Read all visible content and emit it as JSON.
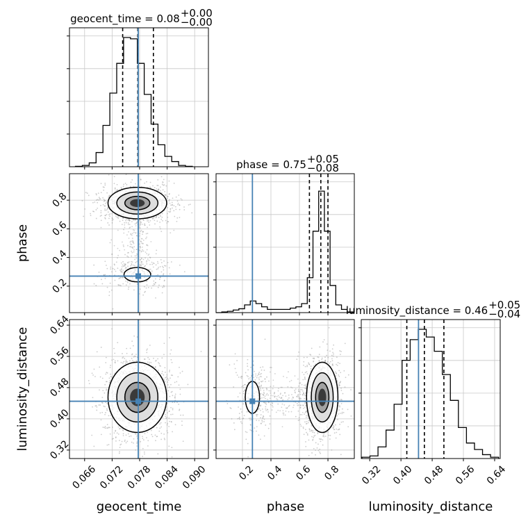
{
  "chart_data": {
    "type": "corner",
    "parameters": [
      "geocent_time",
      "phase",
      "luminosity_distance"
    ],
    "axis_labels": {
      "geocent_time": "geocent_time",
      "phase": "phase",
      "luminosity_distance": "luminosity_distance"
    },
    "titles": [
      {
        "param": "geocent_time",
        "label": "geocent_time",
        "median": "0.08",
        "plus": "+0.00",
        "minus": "−0.00"
      },
      {
        "param": "phase",
        "label": "phase",
        "median": "0.75",
        "plus": "+0.05",
        "minus": "−0.08"
      },
      {
        "param": "luminosity_distance",
        "label": "luminosity_distance",
        "median": "0.46",
        "plus": "+0.05",
        "minus": "−0.04"
      }
    ],
    "ranges": {
      "geocent_time": [
        0.0627,
        0.093
      ],
      "phase": [
        0.015,
        0.985
      ],
      "luminosity_distance": [
        0.2983,
        0.6543
      ]
    },
    "ticks": {
      "geocent_time": [
        "0.066",
        "0.072",
        "0.078",
        "0.084",
        "0.090"
      ],
      "phase": [
        "0.2",
        "0.4",
        "0.6",
        "0.8"
      ],
      "luminosity_distance": [
        "0.32",
        "0.40",
        "0.48",
        "0.56",
        "0.64"
      ]
    },
    "truths": {
      "geocent_time": 0.0777,
      "phase": 0.27,
      "luminosity_distance": 0.445
    },
    "quantiles": {
      "geocent_time": [
        0.0743,
        0.0776,
        0.081
      ],
      "phase": [
        0.67,
        0.75,
        0.8
      ],
      "luminosity_distance": [
        0.415,
        0.46,
        0.51
      ]
    },
    "histograms": {
      "geocent_time": {
        "edges": [
          0.064,
          0.0655,
          0.067,
          0.0685,
          0.07,
          0.0715,
          0.073,
          0.0745,
          0.076,
          0.0775,
          0.079,
          0.0805,
          0.082,
          0.0835,
          0.085,
          0.0865,
          0.088,
          0.0895
        ],
        "counts": [
          0.003,
          0.01,
          0.03,
          0.11,
          0.32,
          0.57,
          0.8,
          1.0,
          0.99,
          0.8,
          0.56,
          0.33,
          0.17,
          0.08,
          0.04,
          0.01,
          0.003
        ]
      },
      "phase": {
        "edges": [
          0.015,
          0.055,
          0.095,
          0.135,
          0.175,
          0.215,
          0.255,
          0.295,
          0.335,
          0.375,
          0.415,
          0.455,
          0.495,
          0.535,
          0.575,
          0.615,
          0.655,
          0.695,
          0.735,
          0.775,
          0.815,
          0.855,
          0.895,
          0.935,
          0.975
        ],
        "counts": [
          0.0,
          0.005,
          0.01,
          0.02,
          0.03,
          0.06,
          0.09,
          0.07,
          0.045,
          0.025,
          0.025,
          0.025,
          0.025,
          0.035,
          0.045,
          0.07,
          0.27,
          0.63,
          0.94,
          0.63,
          0.21,
          0.06,
          0.025,
          0.005
        ]
      },
      "luminosity_distance": {
        "edges": [
          0.3,
          0.3206,
          0.3412,
          0.3618,
          0.3824,
          0.403,
          0.4236,
          0.4442,
          0.4648,
          0.4854,
          0.506,
          0.5266,
          0.5472,
          0.5678,
          0.5884,
          0.609,
          0.6296,
          0.6502
        ],
        "counts": [
          0.01,
          0.02,
          0.09,
          0.22,
          0.42,
          0.76,
          0.92,
          1.0,
          0.94,
          0.83,
          0.65,
          0.45,
          0.24,
          0.12,
          0.07,
          0.03,
          0.01
        ]
      }
    },
    "scatter_2d": [
      {
        "x": "geocent_time",
        "y": "phase",
        "center_x": 0.0775,
        "modes": [
          {
            "y": 0.78,
            "weight": 0.82,
            "sx": 0.0032,
            "sy": 0.055
          },
          {
            "y": 0.28,
            "weight": 0.18,
            "sx": 0.0032,
            "sy": 0.055
          }
        ]
      },
      {
        "x": "geocent_time",
        "y": "luminosity_distance",
        "center_x": 0.0775,
        "center_y": 0.455,
        "sx": 0.0032,
        "sy": 0.045
      },
      {
        "x": "phase",
        "y": "luminosity_distance",
        "modes": [
          {
            "x": 0.76,
            "weight": 0.82,
            "sx": 0.055,
            "sy": 0.045
          },
          {
            "x": 0.27,
            "weight": 0.18,
            "sx": 0.055,
            "sy": 0.045
          }
        ],
        "center_y": 0.455
      }
    ],
    "colors": {
      "truth": "#4682b4",
      "hist": "#000000",
      "points": "#9a9a9a",
      "grid": "#c8c8c8"
    }
  }
}
